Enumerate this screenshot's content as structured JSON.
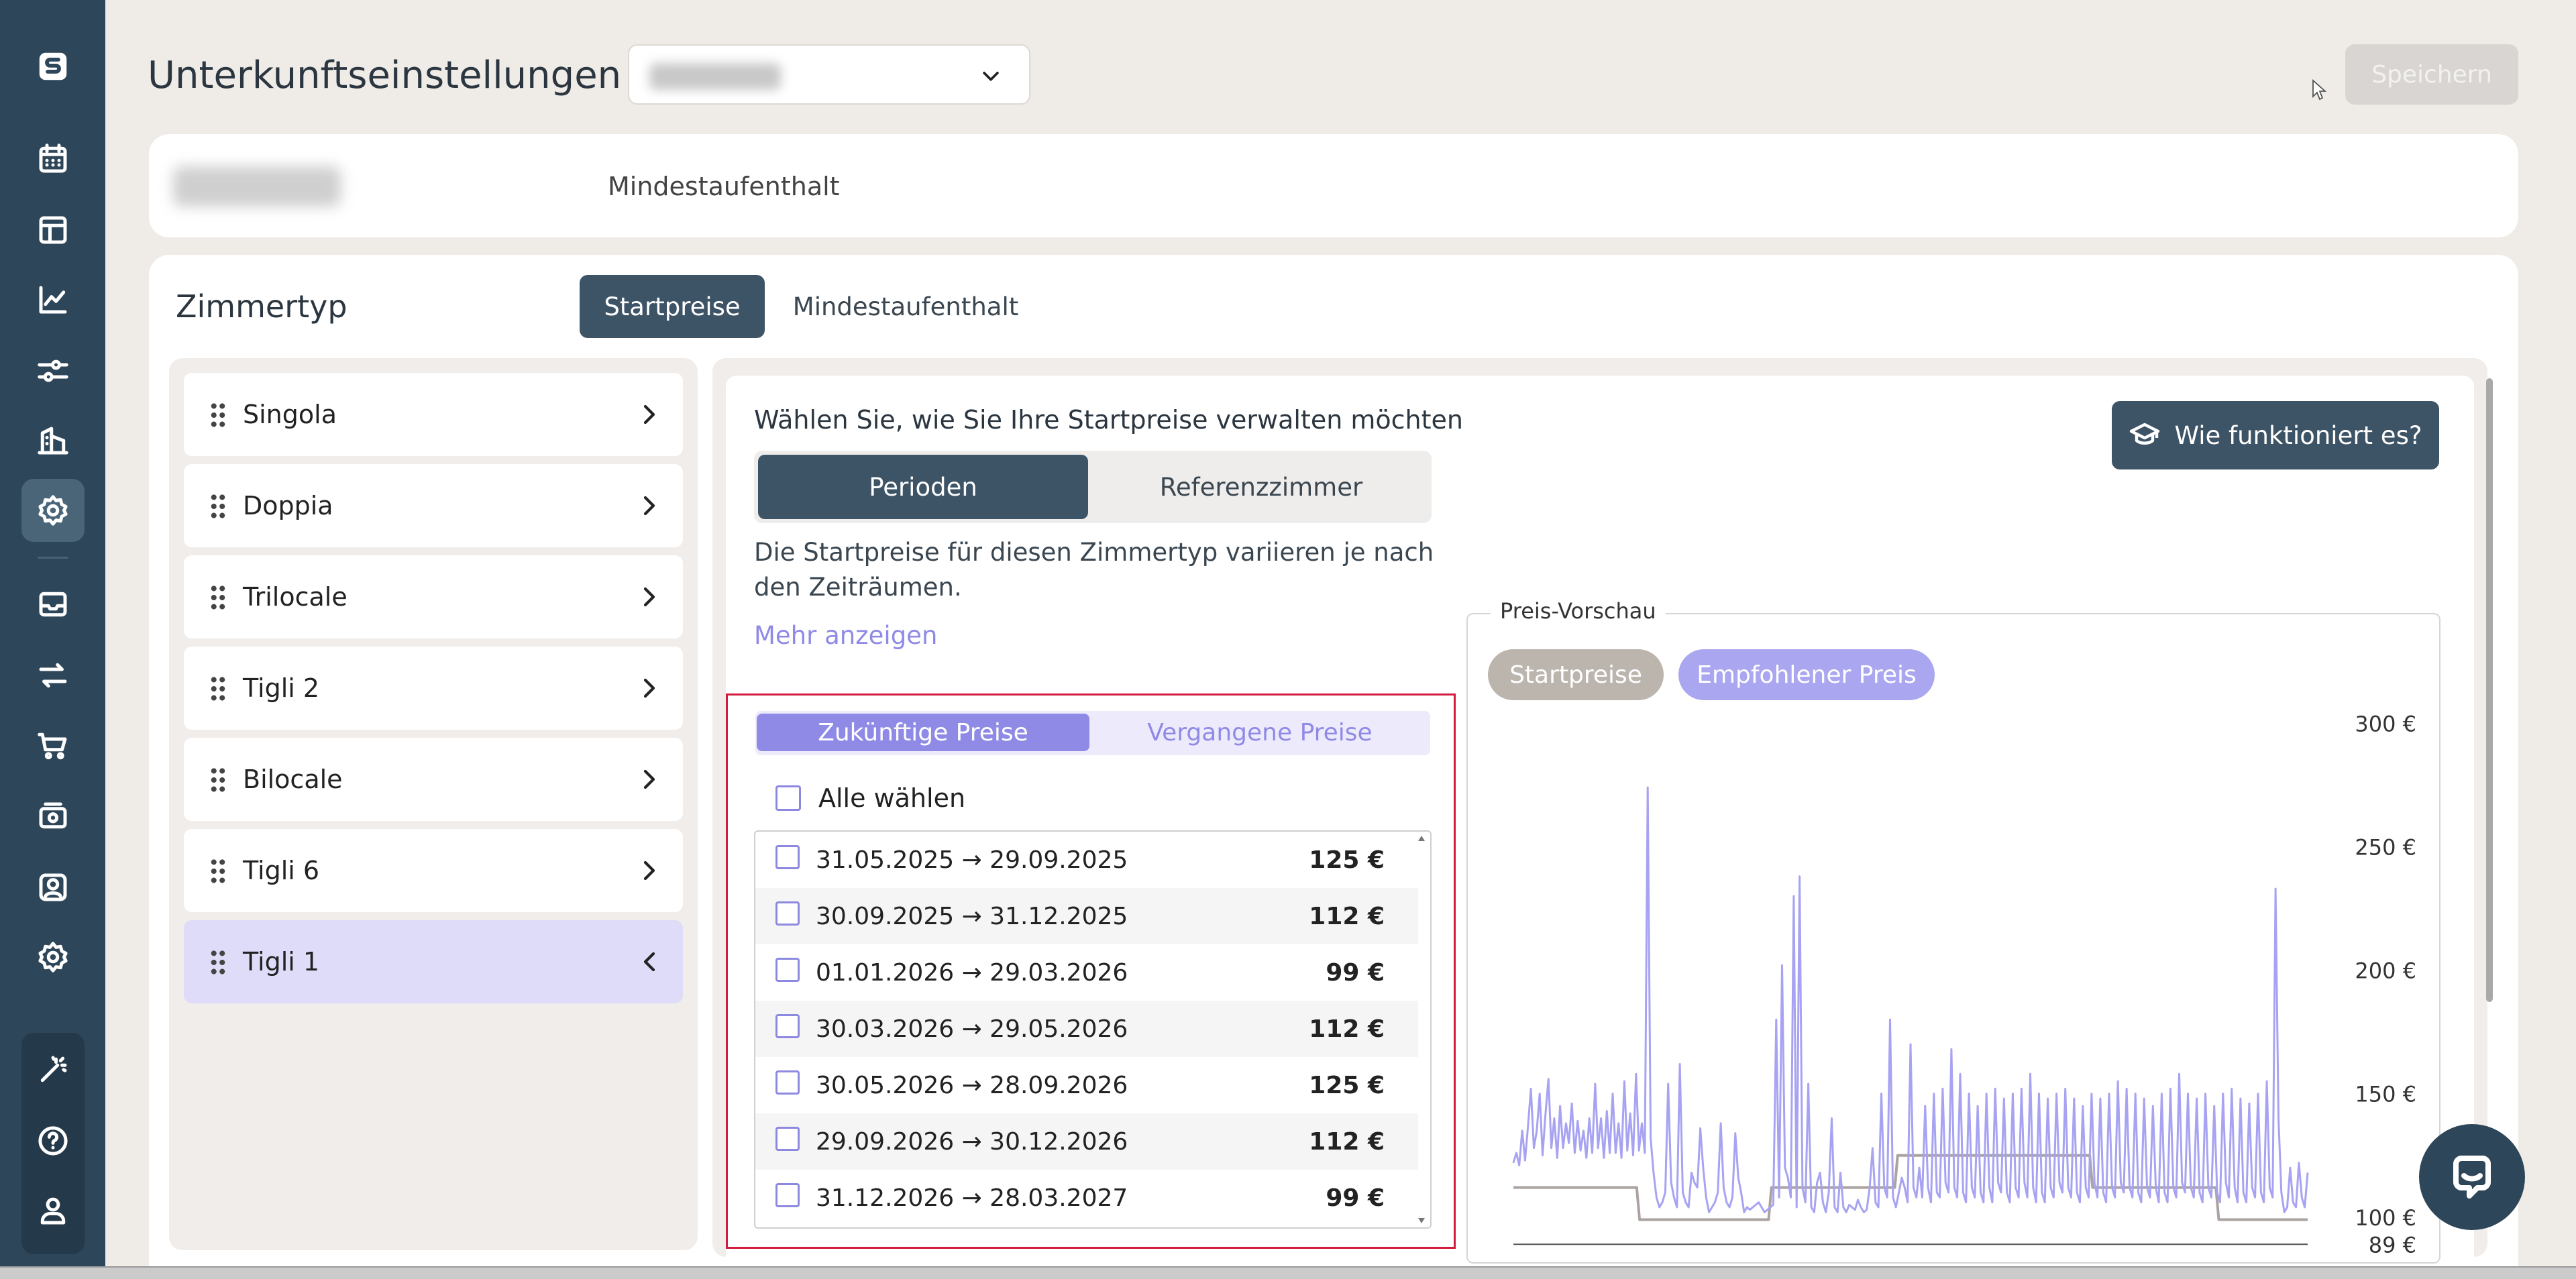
{
  "header": {
    "title": "Unterkunftseinstellungen",
    "save_label": "Speichern"
  },
  "top_card": {
    "label": "Mindestaufenthalt"
  },
  "room_section": {
    "title": "Zimmertyp",
    "tabs": [
      "Startpreise",
      "Mindestaufenthalt"
    ],
    "rooms": [
      {
        "name": "Singola"
      },
      {
        "name": "Doppia"
      },
      {
        "name": "Trilocale"
      },
      {
        "name": "Tigli 2"
      },
      {
        "name": "Bilocale"
      },
      {
        "name": "Tigli 6"
      },
      {
        "name": "Tigli 1"
      }
    ]
  },
  "manage": {
    "title": "Wählen Sie, wie Sie Ihre Startpreise verwalten möchten",
    "mode_perioden": "Perioden",
    "mode_referenz": "Referenzzimmer",
    "description": "Die Startpreise für diesen Zimmertyp variieren je nach den Zeiträumen.",
    "more_link": "Mehr anzeigen",
    "how_button": "Wie funktioniert es?"
  },
  "prices": {
    "tab_future": "Zukünftige Preise",
    "tab_past": "Vergangene Preise",
    "select_all": "Alle wählen",
    "periods": [
      {
        "range": "31.05.2025 → 29.09.2025",
        "price": "125 €"
      },
      {
        "range": "30.09.2025 → 31.12.2025",
        "price": "112 €"
      },
      {
        "range": "01.01.2026 → 29.03.2026",
        "price": "99 €"
      },
      {
        "range": "30.03.2026 → 29.05.2026",
        "price": "112 €"
      },
      {
        "range": "30.05.2026 → 28.09.2026",
        "price": "125 €"
      },
      {
        "range": "29.09.2026 → 30.12.2026",
        "price": "112 €"
      },
      {
        "range": "31.12.2026 → 28.03.2027",
        "price": "99 €"
      }
    ]
  },
  "preview": {
    "title": "Preis-Vorschau",
    "pill_start": "Startpreise",
    "pill_recommended": "Empfohlener Preis"
  },
  "chart_data": {
    "type": "line",
    "yaxis": {
      "ticks": [
        "300 €",
        "250 €",
        "200 €",
        "150 €",
        "100 €",
        "89 €"
      ],
      "ylim": [
        85,
        300
      ]
    },
    "series": [
      {
        "name": "Startpreise",
        "color": "#aaa3a0",
        "values": [
          112,
          112,
          112,
          112,
          112,
          112,
          112,
          112,
          112,
          112,
          112,
          112,
          112,
          112,
          112,
          112,
          112,
          112,
          112,
          112,
          112,
          112,
          112,
          112,
          112,
          112,
          112,
          112,
          112,
          112,
          112,
          112,
          112,
          112,
          112,
          112,
          112,
          112,
          112,
          112,
          112,
          112,
          112,
          112,
          99,
          99,
          99,
          99,
          99,
          99,
          99,
          99,
          99,
          99,
          99,
          99,
          99,
          99,
          99,
          99,
          99,
          99,
          99,
          99,
          99,
          99,
          99,
          99,
          99,
          99,
          99,
          99,
          99,
          99,
          99,
          99,
          99,
          99,
          99,
          99,
          99,
          99,
          99,
          99,
          99,
          99,
          99,
          99,
          99,
          99,
          112,
          112,
          112,
          112,
          112,
          112,
          112,
          112,
          112,
          112,
          112,
          112,
          112,
          112,
          112,
          112,
          112,
          112,
          112,
          112,
          112,
          112,
          112,
          112,
          112,
          112,
          112,
          112,
          112,
          112,
          112,
          112,
          112,
          112,
          112,
          112,
          112,
          112,
          112,
          112,
          112,
          112,
          112,
          112,
          125,
          125,
          125,
          125,
          125,
          125,
          125,
          125,
          125,
          125,
          125,
          125,
          125,
          125,
          125,
          125,
          125,
          125,
          125,
          125,
          125,
          125,
          125,
          125,
          125,
          125,
          125,
          125,
          125,
          125,
          125,
          125,
          125,
          125,
          125,
          125,
          125,
          125,
          125,
          125,
          125,
          125,
          125,
          125,
          125,
          125,
          125,
          125,
          125,
          125,
          125,
          125,
          125,
          125,
          125,
          125,
          125,
          125,
          125,
          125,
          125,
          125,
          125,
          125,
          125,
          125,
          125,
          125,
          112,
          112,
          112,
          112,
          112,
          112,
          112,
          112,
          112,
          112,
          112,
          112,
          112,
          112,
          112,
          112,
          112,
          112,
          112,
          112,
          112,
          112,
          112,
          112,
          112,
          112,
          112,
          112,
          112,
          112,
          112,
          112,
          112,
          112,
          112,
          112,
          112,
          112,
          112,
          112,
          112,
          112,
          112,
          112,
          99,
          99,
          99,
          99,
          99,
          99,
          99,
          99,
          99,
          99,
          99,
          99,
          99,
          99,
          99,
          99,
          99,
          99,
          99,
          99,
          99,
          99,
          99,
          99,
          99,
          99,
          99,
          99,
          99,
          99,
          99,
          99
        ]
      },
      {
        "name": "Empfohlener Preis",
        "color": "#a7a3f2",
        "values": [
          122,
          126,
          121,
          135,
          123,
          137,
          152,
          128,
          135,
          150,
          125,
          142,
          156,
          128,
          140,
          124,
          145,
          128,
          138,
          130,
          146,
          126,
          139,
          127,
          135,
          124,
          140,
          126,
          154,
          128,
          140,
          124,
          143,
          126,
          150,
          126,
          138,
          124,
          155,
          127,
          142,
          125,
          158,
          127,
          138,
          126,
          274,
          132,
          118,
          108,
          104,
          106,
          110,
          154,
          114,
          108,
          104,
          162,
          110,
          106,
          104,
          118,
          114,
          112,
          136,
          120,
          108,
          102,
          104,
          106,
          110,
          138,
          112,
          106,
          104,
          108,
          134,
          116,
          110,
          102,
          104,
          103,
          104,
          105,
          106,
          104,
          102,
          103,
          104,
          105,
          180,
          108,
          202,
          120,
          116,
          108,
          230,
          104,
          238,
          112,
          106,
          154,
          104,
          102,
          114,
          118,
          106,
          102,
          110,
          140,
          104,
          102,
          118,
          104,
          102,
          105,
          104,
          103,
          107,
          104,
          102,
          103,
          112,
          128,
          106,
          104,
          150,
          112,
          108,
          180,
          108,
          104,
          110,
          116,
          112,
          106,
          170,
          112,
          108,
          120,
          108,
          145,
          112,
          106,
          150,
          110,
          108,
          152,
          114,
          110,
          168,
          112,
          108,
          158,
          110,
          106,
          150,
          112,
          108,
          145,
          110,
          106,
          150,
          112,
          106,
          152,
          114,
          110,
          148,
          110,
          106,
          150,
          112,
          108,
          152,
          114,
          108,
          158,
          112,
          106,
          150,
          110,
          106,
          148,
          112,
          108,
          150,
          114,
          110,
          152,
          112,
          108,
          148,
          110,
          106,
          145,
          112,
          108,
          150,
          114,
          108,
          148,
          110,
          106,
          150,
          112,
          108,
          155,
          114,
          110,
          152,
          112,
          108,
          150,
          110,
          106,
          148,
          112,
          108,
          145,
          112,
          106,
          150,
          110,
          106,
          152,
          112,
          108,
          158,
          114,
          110,
          150,
          112,
          108,
          148,
          110,
          106,
          150,
          112,
          108,
          145,
          110,
          106,
          150,
          114,
          108,
          152,
          112,
          106,
          148,
          110,
          106,
          146,
          112,
          108,
          150,
          110,
          106,
          155,
          112,
          108,
          233,
          140,
          110,
          102,
          104,
          120,
          106,
          104,
          122,
          108,
          104,
          118
        ]
      }
    ]
  },
  "colors": {
    "sidebar": "#2e4659",
    "accent_dark": "#3d5366",
    "accent_purple": "#8f8ae6",
    "highlight_border": "#d21b3e"
  }
}
